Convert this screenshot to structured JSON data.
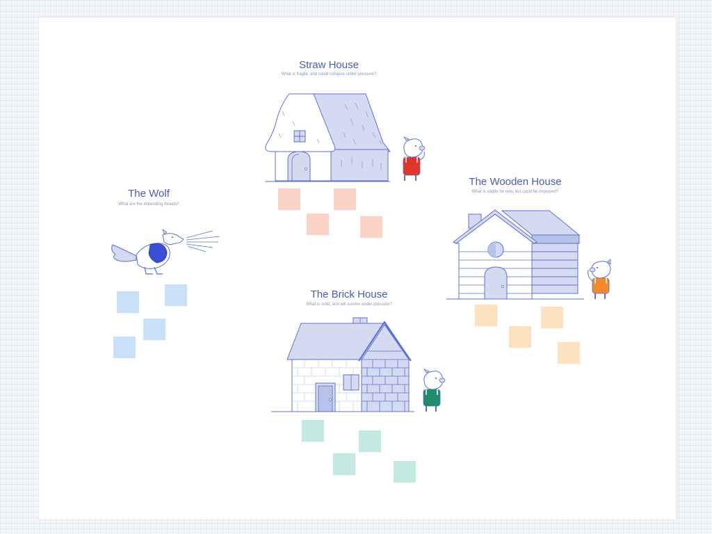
{
  "sections": {
    "straw": {
      "title": "Straw House",
      "subtitle": "What is fragile, and could collapse under pressure?"
    },
    "wolf": {
      "title": "The Wolf",
      "subtitle": "What are the impending threats?"
    },
    "wood": {
      "title": "The Wooden House",
      "subtitle": "What is stable for now, but could be improved?"
    },
    "brick": {
      "title": "The Brick House",
      "subtitle": "What is solid, and will survive under pressure?"
    }
  },
  "colors": {
    "title": "#4a5bb5",
    "line": "#5b6fd0",
    "fill": "#d4dbf1",
    "straw_note": "#fbd2c7",
    "wolf_note": "#c9e1f8",
    "wood_note": "#fde2bf",
    "brick_note": "#c4e8e2"
  },
  "pigs": {
    "straw": {
      "overall_color": "#e0362b"
    },
    "wood": {
      "overall_color": "#f08a2c"
    },
    "brick": {
      "overall_color": "#1f8c6b"
    }
  }
}
